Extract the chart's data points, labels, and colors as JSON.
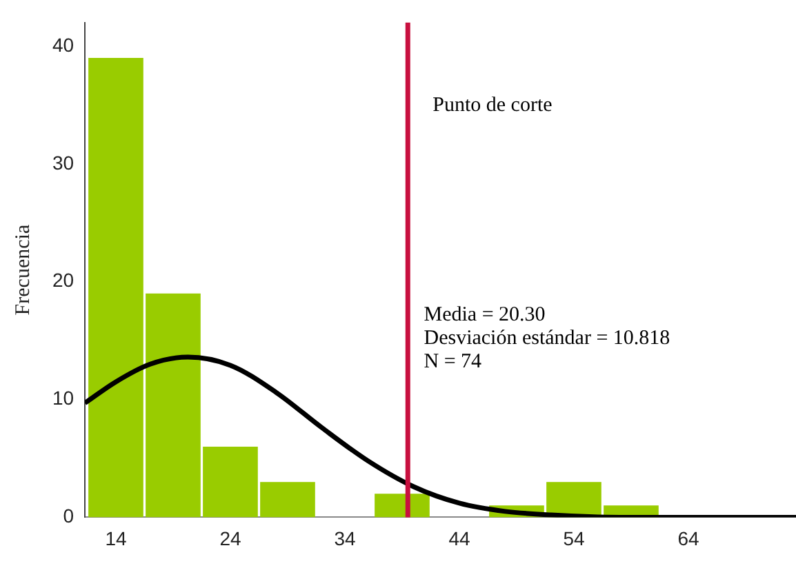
{
  "chart_data": {
    "type": "histogram",
    "ylabel": "Frecuencia",
    "bins": [
      11.5,
      16.5,
      21.5,
      26.5,
      31.5,
      36.5,
      41.5,
      46.5,
      51.5,
      56.5,
      61.5
    ],
    "values": [
      39,
      19,
      6,
      3,
      0,
      2,
      0,
      1,
      3,
      1
    ],
    "color": "#99cc00",
    "series": [
      {
        "type": "line",
        "color": "#000000",
        "x": [
          11.3,
          14,
          17,
          20.3,
          24,
          28,
          32,
          36,
          40,
          44,
          48,
          52,
          58,
          64,
          73.4
        ],
        "values": [
          9.7,
          11.5,
          13,
          13.6,
          12.9,
          10.6,
          7.6,
          4.8,
          2.6,
          1.2,
          0.5,
          0.2,
          0,
          0,
          0
        ]
      }
    ],
    "xlim": [
      11.3,
      73.4
    ],
    "xticks": [
      14,
      24,
      34,
      44,
      54,
      64
    ],
    "ylim": [
      0,
      42
    ],
    "yticks": [
      0,
      10,
      20,
      30,
      40
    ],
    "ref_lines": [
      {
        "axis": "x",
        "value": 39.5,
        "label": "Punto de corte",
        "color": "#c8103f"
      }
    ],
    "annotations": [
      "Media = 20.30",
      "Desviación estándar = 10.818",
      "N = 74"
    ],
    "grid": false,
    "legend": false
  }
}
